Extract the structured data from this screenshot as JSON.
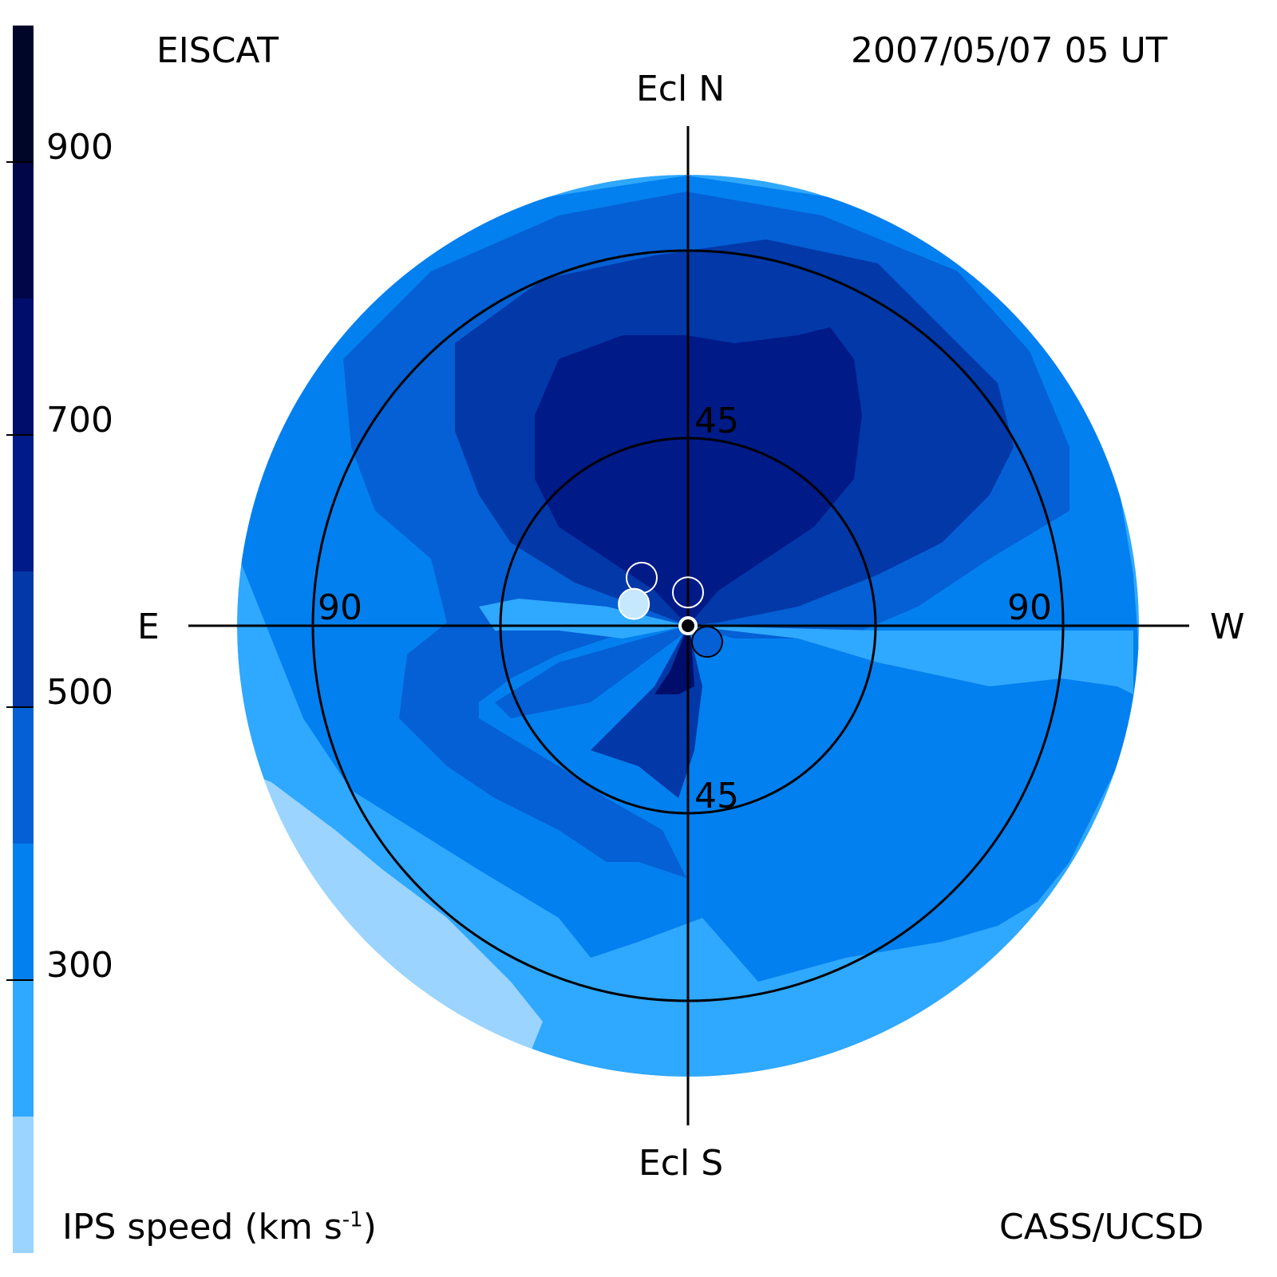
{
  "header": {
    "instrument": "EISCAT",
    "datetime": "2007/05/07 05 UT"
  },
  "footer": {
    "colorbar_label_main": "IPS speed (km s",
    "colorbar_label_exp": "-1",
    "colorbar_label_close": ")",
    "credit": "CASS/UCSD"
  },
  "chart_data": {
    "type": "heatmap",
    "title": "EISCAT",
    "subtitle": "2007/05/07 05 UT",
    "projection": "polar sky map centred on the Sun",
    "direction_labels": {
      "north": "Ecl N",
      "south": "Ecl S",
      "east": "E",
      "west": "W"
    },
    "ring_labels": {
      "inner_top": "45",
      "inner_bottom": "45",
      "outer_left": "90",
      "outer_right": "90"
    },
    "rings_deg": [
      45,
      90
    ],
    "outer_limit_deg": 110,
    "colorbar": {
      "label": "IPS speed (km s-1)",
      "range": [
        100,
        1000
      ],
      "ticks": [
        {
          "value": 300,
          "label": "300"
        },
        {
          "value": 500,
          "label": "500"
        },
        {
          "value": 700,
          "label": "700"
        },
        {
          "value": 900,
          "label": "900"
        }
      ],
      "bins": [
        {
          "min": 100,
          "max": 200,
          "color": "#9bd4ff"
        },
        {
          "min": 200,
          "max": 300,
          "color": "#2fa8ff"
        },
        {
          "min": 300,
          "max": 400,
          "color": "#0380ef"
        },
        {
          "min": 400,
          "max": 500,
          "color": "#0460d4"
        },
        {
          "min": 500,
          "max": 600,
          "color": "#0238a8"
        },
        {
          "min": 600,
          "max": 700,
          "color": "#001a88"
        },
        {
          "min": 700,
          "max": 800,
          "color": "#000d6a"
        },
        {
          "min": 800,
          "max": 900,
          "color": "#000647"
        },
        {
          "min": 900,
          "max": 1000,
          "color": "#000628"
        }
      ]
    },
    "sources": [
      {
        "elong_deg": 16,
        "pa_deg": 44,
        "speed": 550,
        "fill": "none",
        "outline": "white"
      },
      {
        "elong_deg": 8,
        "pa_deg": 0,
        "speed": 550,
        "fill": "none",
        "outline": "white"
      },
      {
        "elong_deg": 14,
        "pa_deg": 68,
        "speed": 180,
        "fill": "#c6e8ff",
        "outline": "white"
      },
      {
        "elong_deg": 6,
        "pa_deg": 230,
        "speed": 450,
        "fill": "#0460d4",
        "outline": "black"
      }
    ]
  }
}
